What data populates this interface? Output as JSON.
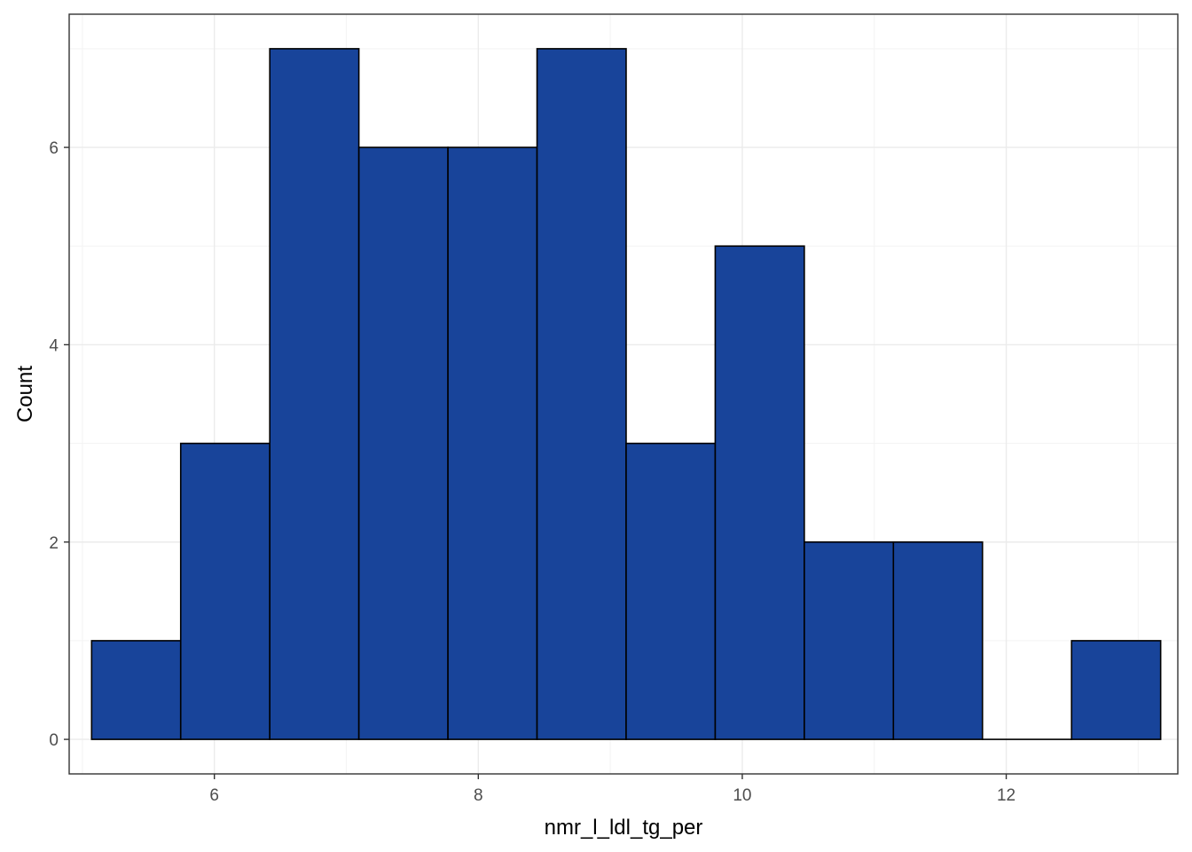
{
  "chart_data": {
    "type": "bar",
    "subtype": "histogram",
    "title": "",
    "xlabel": "nmr_l_ldl_tg_per",
    "ylabel": "Count",
    "xlim": [
      4.9,
      13.3
    ],
    "ylim": [
      -0.35,
      7.35
    ],
    "x_ticks": [
      6,
      8,
      10,
      12
    ],
    "y_ticks": [
      0,
      2,
      4,
      6
    ],
    "grid": true,
    "bin_width": 0.675,
    "bins": [
      {
        "x0": 5.07,
        "x1": 5.745,
        "count": 1
      },
      {
        "x0": 5.745,
        "x1": 6.42,
        "count": 3
      },
      {
        "x0": 6.42,
        "x1": 7.095,
        "count": 7
      },
      {
        "x0": 7.095,
        "x1": 7.77,
        "count": 6
      },
      {
        "x0": 7.77,
        "x1": 8.445,
        "count": 6
      },
      {
        "x0": 8.445,
        "x1": 9.12,
        "count": 7
      },
      {
        "x0": 9.12,
        "x1": 9.795,
        "count": 3
      },
      {
        "x0": 9.795,
        "x1": 10.47,
        "count": 5
      },
      {
        "x0": 10.47,
        "x1": 11.145,
        "count": 2
      },
      {
        "x0": 11.145,
        "x1": 11.82,
        "count": 2
      },
      {
        "x0": 11.82,
        "x1": 12.495,
        "count": 0
      },
      {
        "x0": 12.495,
        "x1": 13.17,
        "count": 1
      }
    ],
    "colors": {
      "bar_fill": "#18449a",
      "bar_stroke": "#000000",
      "grid_major": "#ebebeb",
      "grid_minor": "#f4f4f4",
      "panel_border": "#333333",
      "tick_text": "#4d4d4d"
    }
  }
}
